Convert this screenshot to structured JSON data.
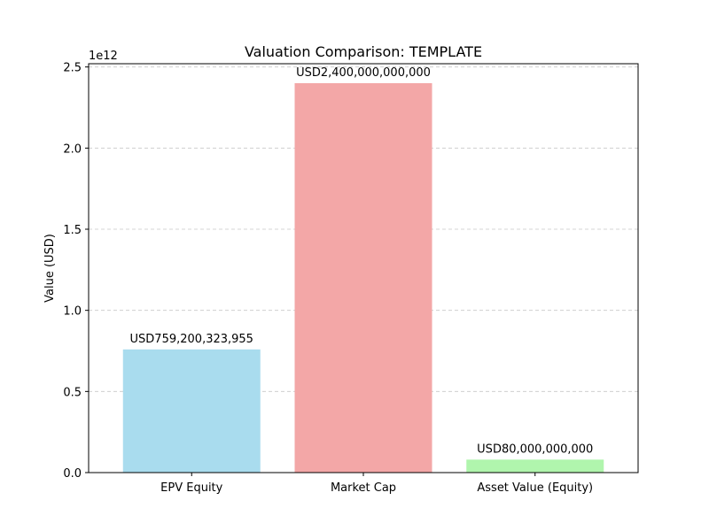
{
  "chart_data": {
    "type": "bar",
    "title": "Valuation Comparison: TEMPLATE",
    "xlabel": "",
    "ylabel": "Value (USD)",
    "y_offset_label": "1e12",
    "categories": [
      "EPV Equity",
      "Market Cap",
      "Asset Value (Equity)"
    ],
    "values": [
      759200323955,
      2400000000000,
      80000000000
    ],
    "data_labels": [
      "USD759,200,323,955",
      "USD2,400,000,000,000",
      "USD80,000,000,000"
    ],
    "colors": [
      "#a9dcee",
      "#f3a7a7",
      "#b0f5ad"
    ],
    "ylim": [
      0,
      2520000000000
    ],
    "yticks": [
      0,
      500000000000,
      1000000000000,
      1500000000000,
      2000000000000,
      2500000000000
    ],
    "ytick_labels": [
      "0.0",
      "0.5",
      "1.0",
      "1.5",
      "2.0",
      "2.5"
    ],
    "grid": "y-dashed",
    "legend": "none"
  }
}
